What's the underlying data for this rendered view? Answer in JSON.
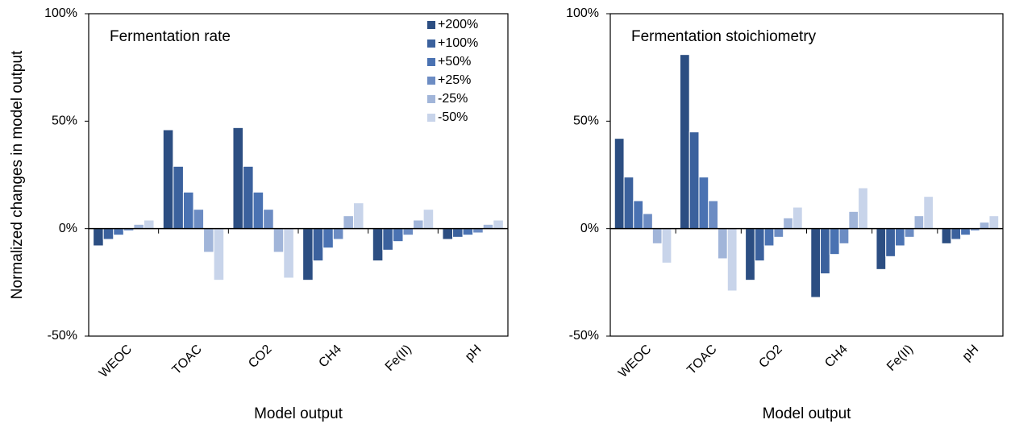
{
  "chart_data": [
    {
      "type": "bar",
      "title": "Fermentation rate",
      "y_label": "Normalized changes in model output",
      "x_label": "Model output",
      "categories": [
        "WEOC",
        "TOAC",
        "CO2",
        "CH4",
        "Fe(II)",
        "pH"
      ],
      "ylim": [
        -50,
        100
      ],
      "yticks": [
        {
          "value": -50,
          "label": "-50%"
        },
        {
          "value": 0,
          "label": "0%"
        },
        {
          "value": 50,
          "label": "50%"
        },
        {
          "value": 100,
          "label": "100%"
        }
      ],
      "legend": "upper right",
      "series": [
        {
          "name": "+200%",
          "color": "#2c4e82",
          "values": [
            -8,
            46,
            47,
            -24,
            -15,
            -5
          ]
        },
        {
          "name": "+100%",
          "color": "#3b619d",
          "values": [
            -5,
            29,
            29,
            -15,
            -10,
            -4
          ]
        },
        {
          "name": "+50%",
          "color": "#4a72b2",
          "values": [
            -3,
            17,
            17,
            -9,
            -6,
            -3
          ]
        },
        {
          "name": "+25%",
          "color": "#6c8cc3",
          "values": [
            -1,
            9,
            9,
            -5,
            -3,
            -2
          ]
        },
        {
          "name": "-25%",
          "color": "#a1b5d9",
          "values": [
            2,
            -11,
            -11,
            6,
            4,
            2
          ]
        },
        {
          "name": "-50%",
          "color": "#c8d4ea",
          "values": [
            4,
            -24,
            -23,
            12,
            9,
            4
          ]
        }
      ]
    },
    {
      "type": "bar",
      "title": "Fermentation stoichiometry",
      "x_label": "Model output",
      "categories": [
        "WEOC",
        "TOAC",
        "CO2",
        "CH4",
        "Fe(II)",
        "pH"
      ],
      "ylim": [
        -50,
        100
      ],
      "yticks": [
        {
          "value": -50,
          "label": "-50%"
        },
        {
          "value": 0,
          "label": "0%"
        },
        {
          "value": 50,
          "label": "50%"
        },
        {
          "value": 100,
          "label": "100%"
        }
      ],
      "series": [
        {
          "name": "+200%",
          "color": "#2c4e82",
          "values": [
            42,
            81,
            -24,
            -32,
            -19,
            -7
          ]
        },
        {
          "name": "+100%",
          "color": "#3b619d",
          "values": [
            24,
            45,
            -15,
            -21,
            -13,
            -5
          ]
        },
        {
          "name": "+50%",
          "color": "#4a72b2",
          "values": [
            13,
            24,
            -8,
            -12,
            -8,
            -3
          ]
        },
        {
          "name": "+25%",
          "color": "#6c8cc3",
          "values": [
            7,
            13,
            -4,
            -7,
            -4,
            -1
          ]
        },
        {
          "name": "-25%",
          "color": "#a1b5d9",
          "values": [
            -7,
            -14,
            5,
            8,
            6,
            3
          ]
        },
        {
          "name": "-50%",
          "color": "#c8d4ea",
          "values": [
            -16,
            -29,
            10,
            19,
            15,
            6
          ]
        }
      ]
    }
  ]
}
